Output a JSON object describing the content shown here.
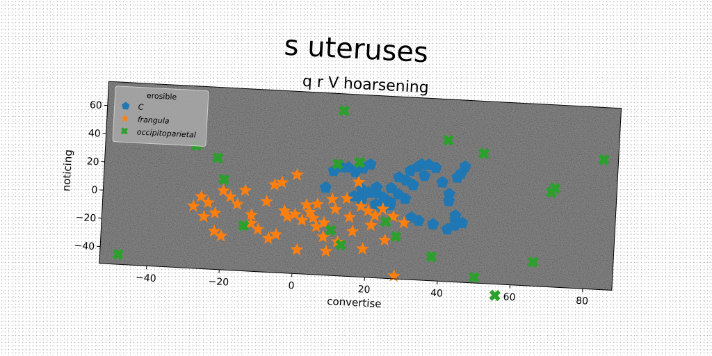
{
  "suptitle": "s uteruses",
  "chart_data": {
    "type": "scatter",
    "title": "q r V hoarsening",
    "xlabel": "convertise",
    "ylabel": "noticing",
    "xlim": [
      -53,
      88
    ],
    "ylim": [
      -52,
      77
    ],
    "xticks": [
      -40,
      -20,
      0,
      20,
      40,
      60,
      80
    ],
    "yticks": [
      -40,
      -20,
      0,
      20,
      40,
      60
    ],
    "grid": false,
    "legend": {
      "title": "erosible",
      "placement": "top-left"
    },
    "background_color": "#808080",
    "series": [
      {
        "name": "C",
        "marker": "pentagon",
        "color": "#1f77b4",
        "points": [
          [
            8,
            10
          ],
          [
            10,
            22
          ],
          [
            12,
            25
          ],
          [
            14,
            25
          ],
          [
            16,
            22
          ],
          [
            18,
            25
          ],
          [
            20,
            28
          ],
          [
            22,
            12
          ],
          [
            18,
            10
          ],
          [
            20,
            8
          ],
          [
            16,
            5
          ],
          [
            18,
            3
          ],
          [
            22,
            8
          ],
          [
            24,
            5
          ],
          [
            26,
            2
          ],
          [
            22,
            0
          ],
          [
            24,
            -2
          ],
          [
            26,
            12
          ],
          [
            28,
            20
          ],
          [
            30,
            18
          ],
          [
            31,
            25
          ],
          [
            32,
            15
          ],
          [
            33,
            28
          ],
          [
            34,
            30
          ],
          [
            35,
            22
          ],
          [
            36,
            30
          ],
          [
            38,
            28
          ],
          [
            40,
            18
          ],
          [
            42,
            10
          ],
          [
            44,
            22
          ],
          [
            45,
            25
          ],
          [
            46,
            30
          ],
          [
            44,
            -5
          ],
          [
            46,
            -10
          ],
          [
            44,
            -8
          ],
          [
            42,
            -15
          ],
          [
            38,
            -12
          ],
          [
            34,
            -10
          ],
          [
            32,
            -8
          ],
          [
            30,
            5
          ],
          [
            28,
            8
          ],
          [
            26,
            0
          ],
          [
            44,
            -12
          ],
          [
            42,
            5
          ]
        ]
      },
      {
        "name": "frangula",
        "marker": "star",
        "color": "#ff7f0e",
        "points": [
          [
            -26,
            -1
          ],
          [
            -24,
            -5
          ],
          [
            -22,
            -12
          ],
          [
            -25,
            -15
          ],
          [
            -22,
            -25
          ],
          [
            -20,
            -28
          ],
          [
            -18,
            0
          ],
          [
            -16,
            -5
          ],
          [
            -14,
            5
          ],
          [
            -12,
            -18
          ],
          [
            -10,
            -22
          ],
          [
            -8,
            -2
          ],
          [
            -6,
            10
          ],
          [
            -4,
            12
          ],
          [
            -5,
            -25
          ],
          [
            -3,
            -8
          ],
          [
            -2,
            -12
          ],
          [
            0,
            -10
          ],
          [
            0,
            18
          ],
          [
            2,
            -14
          ],
          [
            3,
            -3
          ],
          [
            4,
            -8
          ],
          [
            5,
            -12
          ],
          [
            6,
            -2
          ],
          [
            8,
            -15
          ],
          [
            8,
            -25
          ],
          [
            9,
            -35
          ],
          [
            10,
            2
          ],
          [
            11,
            -5
          ],
          [
            12,
            -28
          ],
          [
            14,
            3
          ],
          [
            15,
            -10
          ],
          [
            16,
            -20
          ],
          [
            17,
            15
          ],
          [
            18,
            -2
          ],
          [
            19,
            -32
          ],
          [
            20,
            -5
          ],
          [
            21,
            -15
          ],
          [
            22,
            -8
          ],
          [
            24,
            -3
          ],
          [
            25,
            -25
          ],
          [
            27,
            -8
          ],
          [
            28,
            -50
          ],
          [
            30,
            -12
          ],
          [
            -28,
            -8
          ],
          [
            -20,
            4
          ],
          [
            1,
            -35
          ],
          [
            -7,
            -28
          ],
          [
            -12,
            -12
          ],
          [
            6,
            -18
          ]
        ]
      },
      {
        "name": "occipitoparietal",
        "marker": "x",
        "color": "#2ca02c",
        "points": [
          [
            -48,
            -45
          ],
          [
            -28,
            35
          ],
          [
            -22,
            27
          ],
          [
            -20,
            12
          ],
          [
            -14,
            -20
          ],
          [
            10,
            -20
          ],
          [
            11,
            27
          ],
          [
            12,
            65
          ],
          [
            13,
            -30
          ],
          [
            17,
            29
          ],
          [
            25,
            -12
          ],
          [
            28,
            -22
          ],
          [
            38,
            -35
          ],
          [
            41,
            48
          ],
          [
            50,
            -48
          ],
          [
            51,
            40
          ],
          [
            56,
            -60
          ],
          [
            66,
            -35
          ],
          [
            70,
            15
          ],
          [
            71,
            18
          ],
          [
            84,
            40
          ]
        ]
      }
    ]
  }
}
